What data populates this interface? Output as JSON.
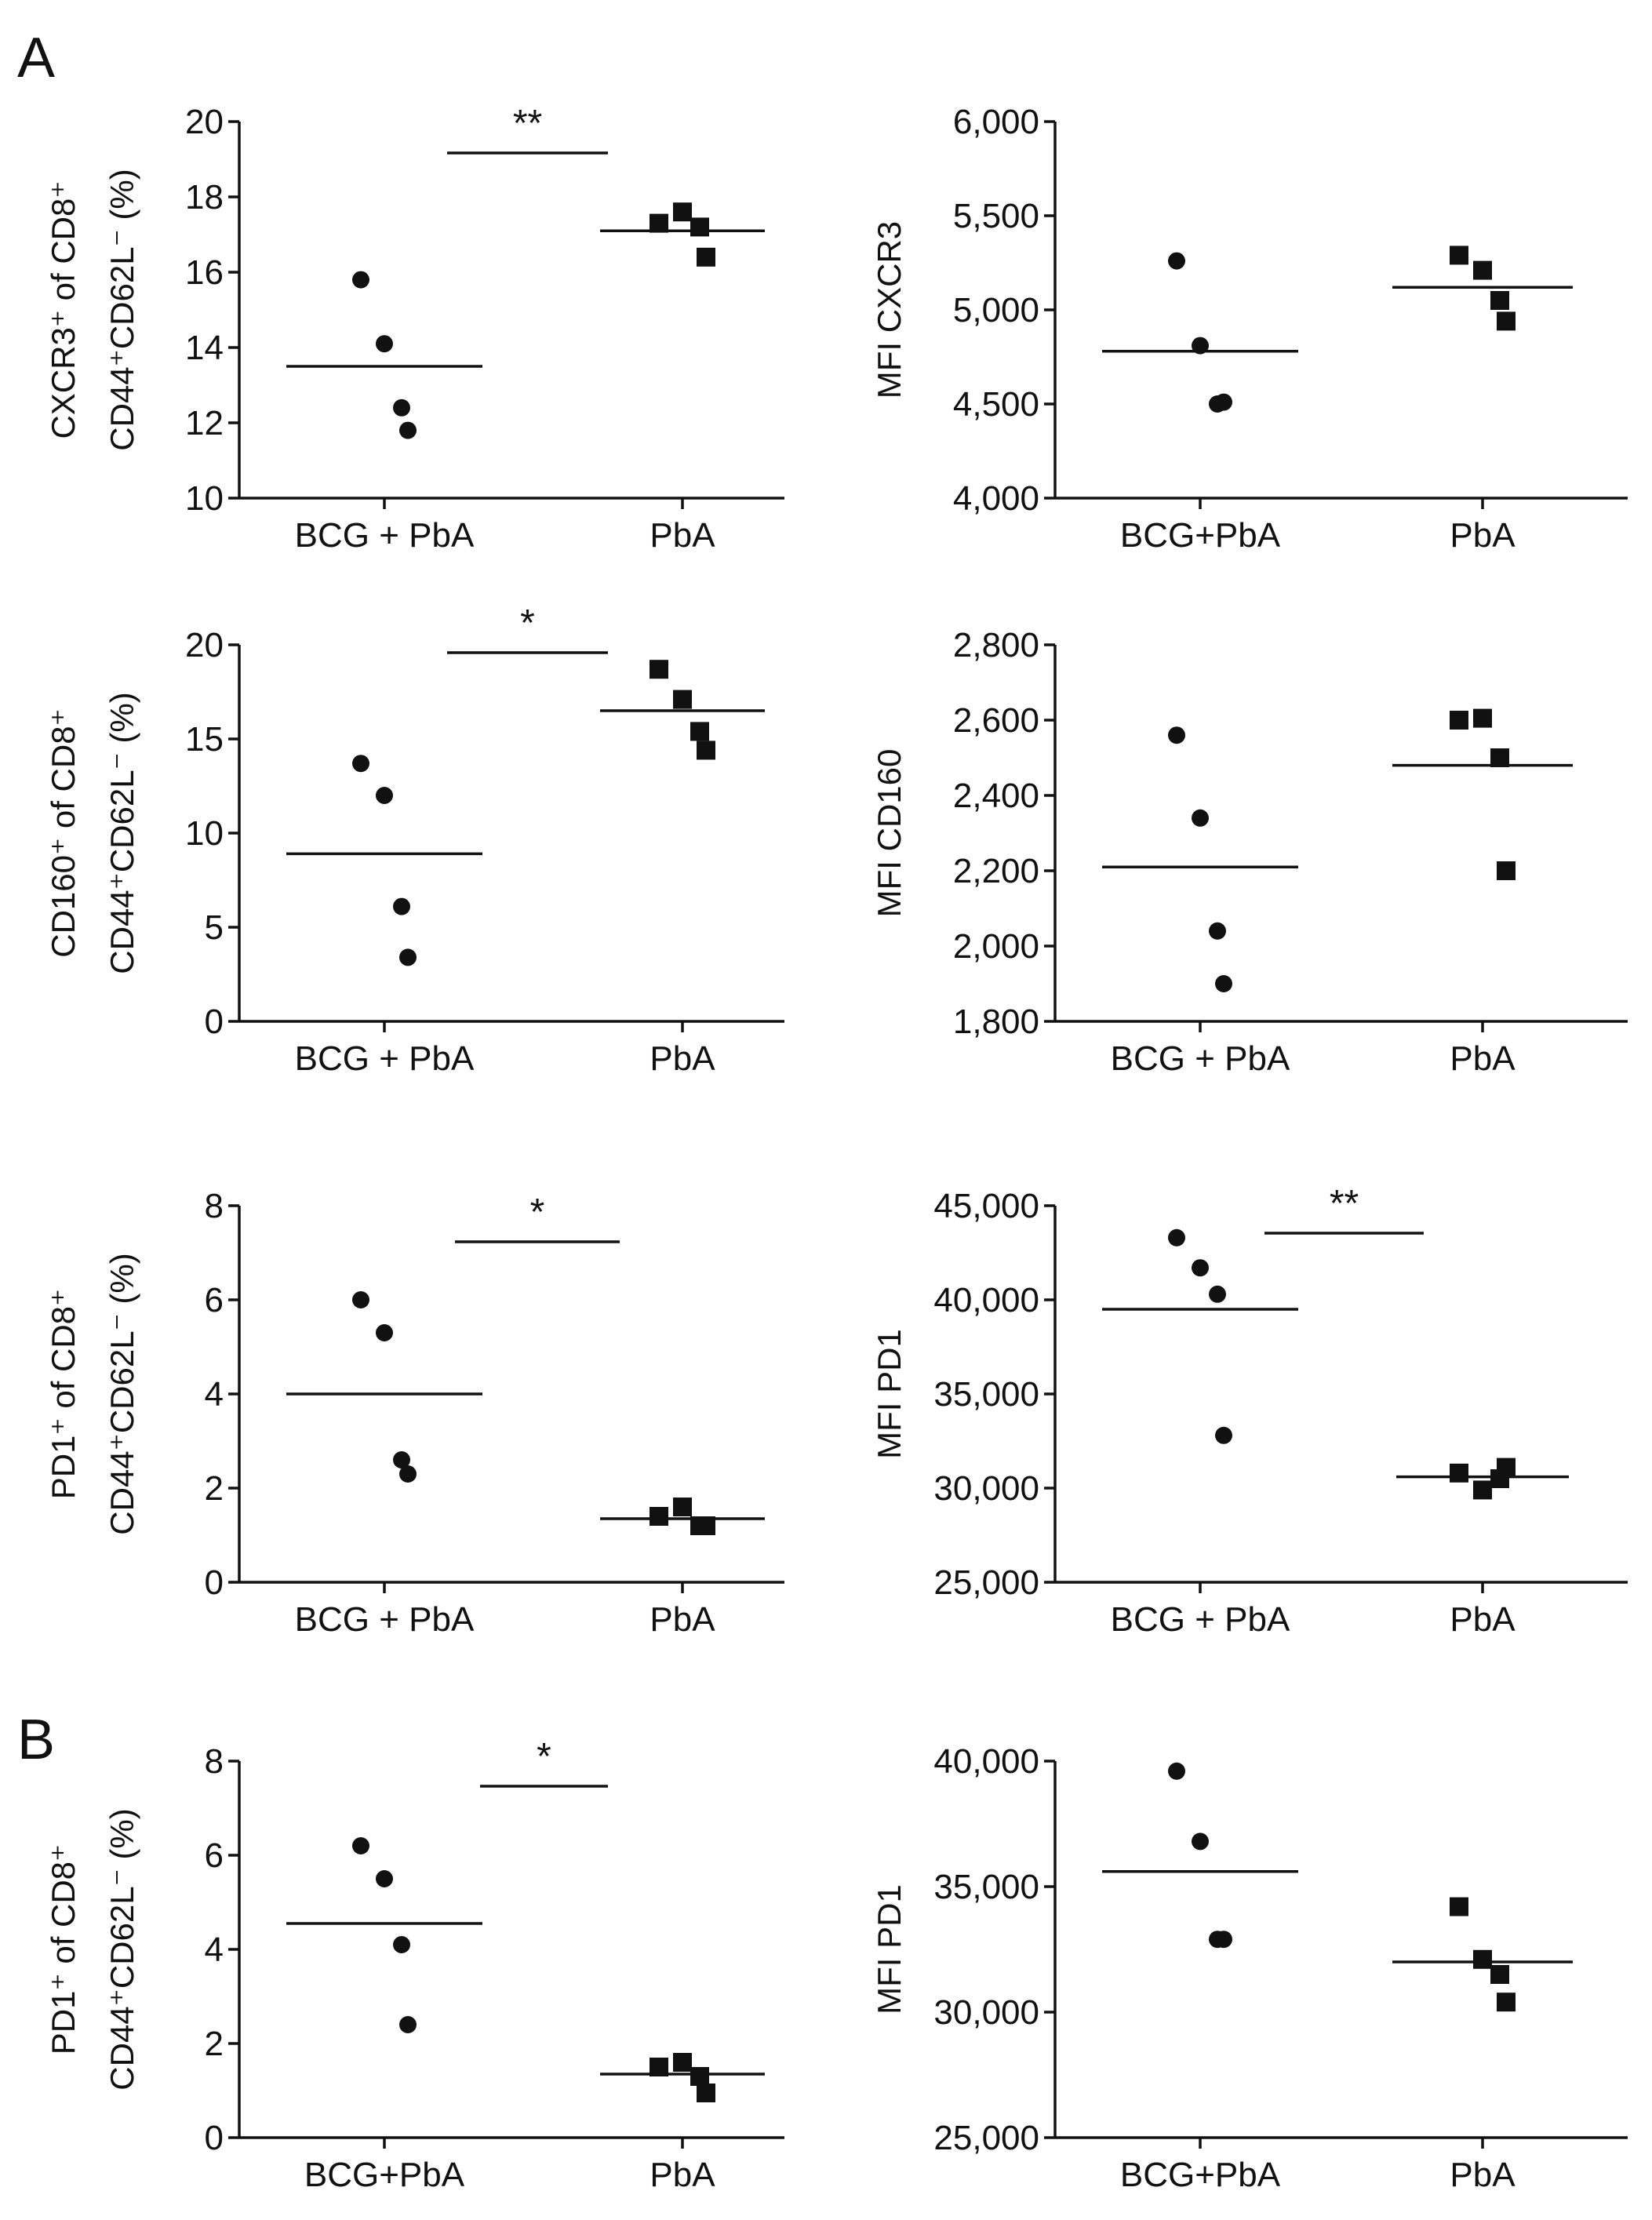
{
  "panel_labels": [
    "A",
    "B"
  ],
  "chart_data": [
    {
      "type": "scatter",
      "ylabel_line1": "CXCR3⁺ of CD8⁺",
      "ylabel_line2": "CD44⁺CD62L⁻ (%)",
      "ylim": [
        10,
        20
      ],
      "yticks": [
        10,
        12,
        14,
        16,
        18,
        20
      ],
      "ytick_labels": [
        "10",
        "12",
        "14",
        "16",
        "18",
        "20"
      ],
      "categories": [
        "BCG + PbA",
        "PbA"
      ],
      "groups": [
        {
          "name": "BCG + PbA",
          "marker": "circle",
          "points": [
            15.8,
            14.1,
            12.4,
            11.8
          ],
          "mean": 13.5
        },
        {
          "name": "PbA",
          "marker": "square",
          "points": [
            17.3,
            17.6,
            17.2,
            16.4
          ],
          "mean": 17.1
        }
      ],
      "significance": "**"
    },
    {
      "type": "scatter",
      "ylabel_line1": "MFI CXCR3",
      "ylabel_line2": "",
      "ylim": [
        4000,
        6000
      ],
      "yticks": [
        4000,
        4500,
        5000,
        5500,
        6000
      ],
      "ytick_labels": [
        "4,000",
        "4,500",
        "5,000",
        "5,500",
        "6,000"
      ],
      "categories": [
        "BCG+PbA",
        "PbA"
      ],
      "groups": [
        {
          "name": "BCG+PbA",
          "marker": "circle",
          "points": [
            5260,
            4810,
            4500,
            4510
          ],
          "mean": 4780
        },
        {
          "name": "PbA",
          "marker": "square",
          "points": [
            5290,
            5210,
            5050,
            4940
          ],
          "mean": 5120
        }
      ],
      "significance": ""
    },
    {
      "type": "scatter",
      "ylabel_line1": "CD160⁺ of CD8⁺",
      "ylabel_line2": "CD44⁺CD62L⁻ (%)",
      "ylim": [
        0,
        20
      ],
      "yticks": [
        0,
        5,
        10,
        15,
        20
      ],
      "ytick_labels": [
        "0",
        "5",
        "10",
        "15",
        "20"
      ],
      "categories": [
        "BCG + PbA",
        "PbA"
      ],
      "groups": [
        {
          "name": "BCG + PbA",
          "marker": "circle",
          "points": [
            13.7,
            12.0,
            6.1,
            3.4
          ],
          "mean": 8.9
        },
        {
          "name": "PbA",
          "marker": "square",
          "points": [
            18.7,
            17.1,
            15.4,
            14.4
          ],
          "mean": 16.5
        }
      ],
      "significance": "*"
    },
    {
      "type": "scatter",
      "ylabel_line1": "MFI CD160",
      "ylabel_line2": "",
      "ylim": [
        1800,
        2800
      ],
      "yticks": [
        1800,
        2000,
        2200,
        2400,
        2600,
        2800
      ],
      "ytick_labels": [
        "1,800",
        "2,000",
        "2,200",
        "2,400",
        "2,600",
        "2,800"
      ],
      "categories": [
        "BCG + PbA",
        "PbA"
      ],
      "groups": [
        {
          "name": "BCG + PbA",
          "marker": "circle",
          "points": [
            2560,
            2340,
            2040,
            1900
          ],
          "mean": 2210
        },
        {
          "name": "PbA",
          "marker": "square",
          "points": [
            2600,
            2605,
            2500,
            2200
          ],
          "mean": 2480
        }
      ],
      "significance": ""
    },
    {
      "type": "scatter",
      "ylabel_line1": "PD1⁺ of CD8⁺",
      "ylabel_line2": "CD44⁺CD62L⁻ (%)",
      "ylim": [
        0,
        8
      ],
      "yticks": [
        0,
        2,
        4,
        6,
        8
      ],
      "ytick_labels": [
        "0",
        "2",
        "4",
        "6",
        "8"
      ],
      "categories": [
        "BCG + PbA",
        "PbA"
      ],
      "groups": [
        {
          "name": "BCG + PbA",
          "marker": "circle",
          "points": [
            6.0,
            5.3,
            2.6,
            2.3
          ],
          "mean": 4.0
        },
        {
          "name": "PbA",
          "marker": "square",
          "points": [
            1.4,
            1.6,
            1.2,
            1.2
          ],
          "mean": 1.35
        }
      ],
      "significance": "*"
    },
    {
      "type": "scatter",
      "ylabel_line1": "MFI PD1",
      "ylabel_line2": "",
      "ylim": [
        25000,
        45000
      ],
      "yticks": [
        25000,
        30000,
        35000,
        40000,
        45000
      ],
      "ytick_labels": [
        "25,000",
        "30,000",
        "35,000",
        "40,000",
        "45,000"
      ],
      "categories": [
        "BCG + PbA",
        "PbA"
      ],
      "groups": [
        {
          "name": "BCG + PbA",
          "marker": "circle",
          "points": [
            43300,
            41700,
            40300,
            32800
          ],
          "mean": 39500
        },
        {
          "name": "PbA",
          "marker": "square",
          "points": [
            30800,
            29900,
            30500,
            31100
          ],
          "mean": 30600
        }
      ],
      "significance": "**"
    },
    {
      "type": "scatter",
      "ylabel_line1": "PD1⁺ of CD8⁺",
      "ylabel_line2": "CD44⁺CD62L⁻ (%)",
      "ylim": [
        0,
        8
      ],
      "yticks": [
        0,
        2,
        4,
        6,
        8
      ],
      "ytick_labels": [
        "0",
        "2",
        "4",
        "6",
        "8"
      ],
      "categories": [
        "BCG+PbA",
        "PbA"
      ],
      "groups": [
        {
          "name": "BCG+PbA",
          "marker": "circle",
          "points": [
            6.2,
            5.5,
            4.1,
            2.4
          ],
          "mean": 4.55
        },
        {
          "name": "PbA",
          "marker": "square",
          "points": [
            1.5,
            1.6,
            1.3,
            0.95
          ],
          "mean": 1.35
        }
      ],
      "significance": "*"
    },
    {
      "type": "scatter",
      "ylabel_line1": "MFI PD1",
      "ylabel_line2": "",
      "ylim": [
        25000,
        40000
      ],
      "yticks": [
        25000,
        30000,
        35000,
        40000
      ],
      "ytick_labels": [
        "25,000",
        "30,000",
        "35,000",
        "40,000"
      ],
      "categories": [
        "BCG+PbA",
        "PbA"
      ],
      "groups": [
        {
          "name": "BCG+PbA",
          "marker": "circle",
          "points": [
            39600,
            36800,
            32900,
            32900
          ],
          "mean": 35600
        },
        {
          "name": "PbA",
          "marker": "square",
          "points": [
            34200,
            32100,
            31500,
            30400
          ],
          "mean": 32000
        }
      ],
      "significance": ""
    }
  ]
}
